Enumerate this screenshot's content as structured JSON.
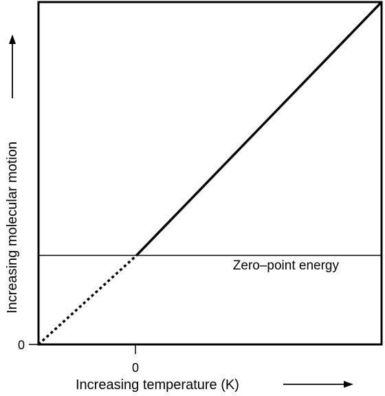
{
  "chart_data": {
    "type": "line",
    "xlabel": "Increasing temperature (K)",
    "ylabel": "Increasing molecular motion",
    "x_ticks": [
      "0"
    ],
    "y_ticks": [
      "0"
    ],
    "annotation": "Zero–point energy",
    "series": [
      {
        "style": "solid",
        "color": "#000000",
        "points": [
          [
            0,
            0.26
          ],
          [
            1.0,
            1.0
          ]
        ]
      },
      {
        "style": "dashed",
        "color": "#000000",
        "points": [
          [
            -0.4,
            0
          ],
          [
            0,
            0.26
          ]
        ]
      }
    ],
    "reference_lines": [
      {
        "orientation": "horizontal",
        "y": 0.26,
        "label": "Zero–point energy"
      }
    ],
    "xlim": [
      -0.4,
      1.0
    ],
    "ylim": [
      0,
      1.0
    ],
    "grid": false,
    "legend": "none"
  }
}
